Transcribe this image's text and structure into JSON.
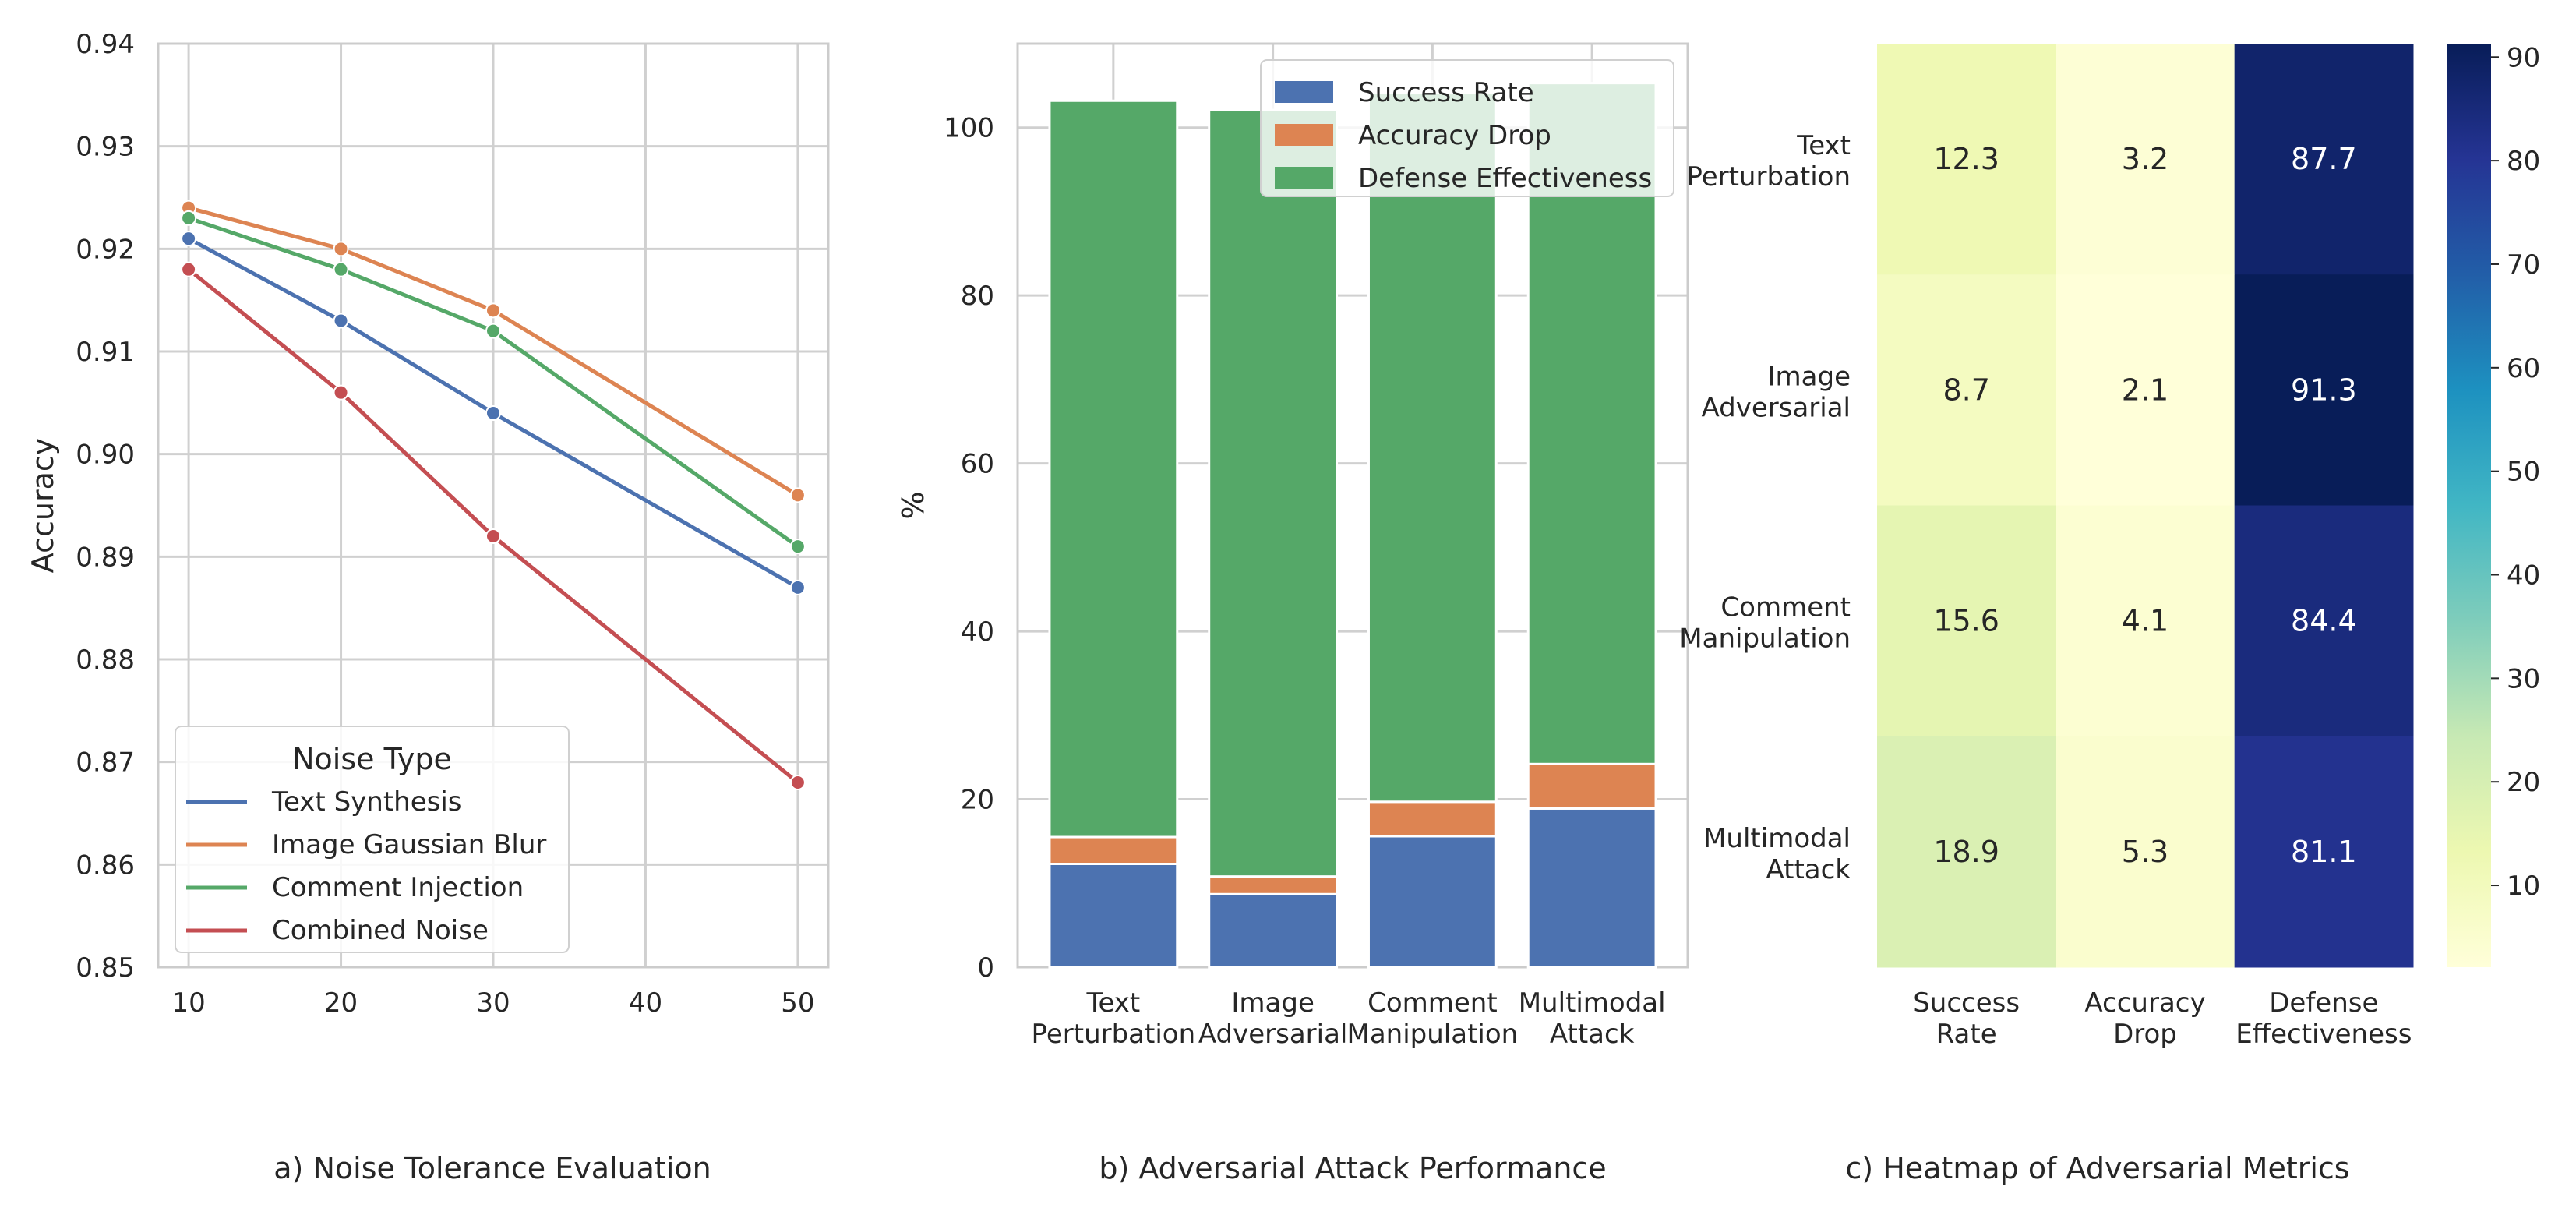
{
  "chart_data": [
    {
      "type": "line",
      "caption": "a) Noise Tolerance Evaluation",
      "xlabel": "",
      "ylabel": "Accuracy",
      "x": [
        10,
        20,
        30,
        50
      ],
      "xticks": [
        "10",
        "20",
        "30",
        "40",
        "50"
      ],
      "yticks": [
        "0.85",
        "0.86",
        "0.87",
        "0.88",
        "0.89",
        "0.90",
        "0.91",
        "0.92",
        "0.93",
        "0.94"
      ],
      "xlim": [
        8,
        52
      ],
      "ylim": [
        0.85,
        0.94
      ],
      "grid": true,
      "legend_title": "Noise Type",
      "legend_position": "lower-left",
      "series": [
        {
          "name": "Text Synthesis",
          "color": "#4c72b0",
          "values": [
            0.921,
            0.913,
            0.904,
            0.887
          ]
        },
        {
          "name": "Image Gaussian Blur",
          "color": "#dd8452",
          "values": [
            0.924,
            0.92,
            0.914,
            0.896
          ]
        },
        {
          "name": "Comment Injection",
          "color": "#55a868",
          "values": [
            0.923,
            0.918,
            0.912,
            0.891
          ]
        },
        {
          "name": "Combined Noise",
          "color": "#c44e52",
          "values": [
            0.918,
            0.906,
            0.892,
            0.868
          ]
        }
      ]
    },
    {
      "type": "bar",
      "stacked": true,
      "caption": "b) Adversarial Attack Performance",
      "xlabel": "",
      "ylabel": "%",
      "categories": [
        [
          "Text",
          "Perturbation"
        ],
        [
          "Image",
          "Adversarial"
        ],
        [
          "Comment",
          "Manipulation"
        ],
        [
          "Multimodal",
          "Attack"
        ]
      ],
      "yticks": [
        "0",
        "20",
        "40",
        "60",
        "80",
        "100"
      ],
      "ylim": [
        0,
        110
      ],
      "grid": true,
      "legend_position": "top-right",
      "series": [
        {
          "name": "Success Rate",
          "color": "#4c72b0",
          "values": [
            12.3,
            8.7,
            15.6,
            18.9
          ]
        },
        {
          "name": "Accuracy Drop",
          "color": "#dd8452",
          "values": [
            3.2,
            2.1,
            4.1,
            5.3
          ]
        },
        {
          "name": "Defense Effectiveness",
          "color": "#55a868",
          "values": [
            87.7,
            91.3,
            84.4,
            81.1
          ]
        }
      ]
    },
    {
      "type": "heatmap",
      "caption": "c) Heatmap of Adversarial Metrics",
      "colormap": "YlGnBu",
      "rows": [
        [
          "Text",
          "Perturbation"
        ],
        [
          "Image",
          "Adversarial"
        ],
        [
          "Comment",
          "Manipulation"
        ],
        [
          "Multimodal",
          "Attack"
        ]
      ],
      "columns": [
        [
          "Success",
          "Rate"
        ],
        [
          "Accuracy",
          "Drop"
        ],
        [
          "Defense",
          "Effectiveness"
        ]
      ],
      "values": [
        [
          12.3,
          3.2,
          87.7
        ],
        [
          8.7,
          2.1,
          91.3
        ],
        [
          15.6,
          4.1,
          84.4
        ],
        [
          18.9,
          5.3,
          81.1
        ]
      ],
      "labels": [
        [
          "12.3",
          "3.2",
          "87.7"
        ],
        [
          "8.7",
          "2.1",
          "91.3"
        ],
        [
          "15.6",
          "4.1",
          "84.4"
        ],
        [
          "18.9",
          "5.3",
          "81.1"
        ]
      ],
      "vmin": 2.1,
      "vmax": 91.3,
      "colorbar_ticks": [
        "10",
        "20",
        "30",
        "40",
        "50",
        "60",
        "70",
        "80",
        "90"
      ]
    }
  ]
}
